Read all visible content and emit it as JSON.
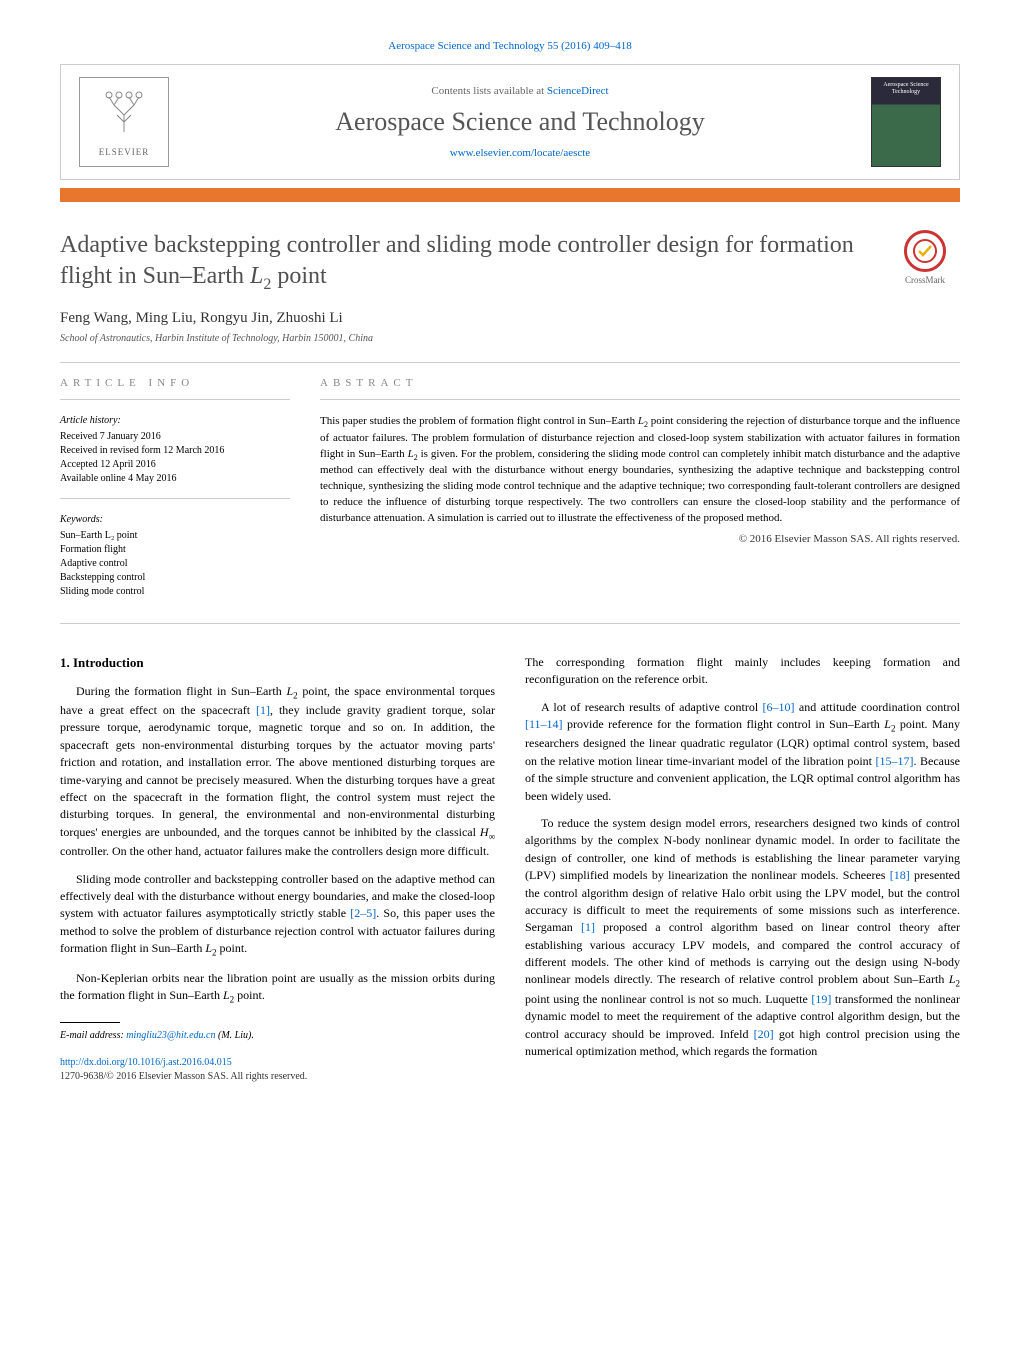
{
  "journal_ref": "Aerospace Science and Technology 55 (2016) 409–418",
  "header": {
    "contents_prefix": "Contents lists available at ",
    "contents_link": "ScienceDirect",
    "journal_name": "Aerospace Science and Technology",
    "journal_url": "www.elsevier.com/locate/aescte",
    "publisher": "ELSEVIER",
    "cover_text": "Aerospace Science Technology"
  },
  "title_html": "Adaptive backstepping controller and sliding mode controller design for formation flight in Sun–Earth <em>L</em><sub>2</sub> point",
  "crossmark": "CrossMark",
  "authors": "Feng Wang, Ming Liu, Rongyu Jin, Zhuoshi Li",
  "affiliation": "School of Astronautics, Harbin Institute of Technology, Harbin 150001, China",
  "article_info": {
    "heading": "article info",
    "history_head": "Article history:",
    "history": [
      "Received 7 January 2016",
      "Received in revised form 12 March 2016",
      "Accepted 12 April 2016",
      "Available online 4 May 2016"
    ],
    "keywords_head": "Keywords:",
    "keywords": [
      "Sun–Earth L₂ point",
      "Formation flight",
      "Adaptive control",
      "Backstepping control",
      "Sliding mode control"
    ]
  },
  "abstract": {
    "heading": "abstract",
    "text_html": "This paper studies the problem of formation flight control in Sun–Earth <em>L</em><sub>2</sub> point considering the rejection of disturbance torque and the influence of actuator failures. The problem formulation of disturbance rejection and closed-loop system stabilization with actuator failures in formation flight in Sun–Earth <em>L</em><sub>2</sub> is given. For the problem, considering the sliding mode control can completely inhibit match disturbance and the adaptive method can effectively deal with the disturbance without energy boundaries, synthesizing the adaptive technique and backstepping control technique, synthesizing the sliding mode control technique and the adaptive technique; two corresponding fault-tolerant controllers are designed to reduce the influence of disturbing torque respectively. The two controllers can ensure the closed-loop stability and the performance of disturbance attenuation. A simulation is carried out to illustrate the effectiveness of the proposed method.",
    "copyright": "© 2016 Elsevier Masson SAS. All rights reserved."
  },
  "body": {
    "section_num": "1.",
    "section_title": "Introduction",
    "left_paragraphs_html": [
      "During the formation flight in Sun–Earth <em>L</em><sub>2</sub> point, the space environmental torques have a great effect on the spacecraft <span class='ref'>[1]</span>, they include gravity gradient torque, solar pressure torque, aerodynamic torque, magnetic torque and so on. In addition, the spacecraft gets non-environmental disturbing torques by the actuator moving parts' friction and rotation, and installation error. The above mentioned disturbing torques are time-varying and cannot be precisely measured. When the disturbing torques have a great effect on the spacecraft in the formation flight, the control system must reject the disturbing torques. In general, the environmental and non-environmental disturbing torques' energies are unbounded, and the torques cannot be inhibited by the classical <em>H</em><sub>∞</sub> controller. On the other hand, actuator failures make the controllers design more difficult.",
      "Sliding mode controller and backstepping controller based on the adaptive method can effectively deal with the disturbance without energy boundaries, and make the closed-loop system with actuator failures asymptotically strictly stable <span class='ref'>[2–5]</span>. So, this paper uses the method to solve the problem of disturbance rejection control with actuator failures during formation flight in Sun–Earth <em>L</em><sub>2</sub> point.",
      "Non-Keplerian orbits near the libration point are usually as the mission orbits during the formation flight in Sun–Earth <em>L</em><sub>2</sub> point."
    ],
    "right_paragraphs_html": [
      "The corresponding formation flight mainly includes keeping formation and reconfiguration on the reference orbit.",
      "A lot of research results of adaptive control <span class='ref'>[6–10]</span> and attitude coordination control <span class='ref'>[11–14]</span> provide reference for the formation flight control in Sun–Earth <em>L</em><sub>2</sub> point. Many researchers designed the linear quadratic regulator (LQR) optimal control system, based on the relative motion linear time-invariant model of the libration point <span class='ref'>[15–17]</span>. Because of the simple structure and convenient application, the LQR optimal control algorithm has been widely used.",
      "To reduce the system design model errors, researchers designed two kinds of control algorithms by the complex N-body nonlinear dynamic model. In order to facilitate the design of controller, one kind of methods is establishing the linear parameter varying (LPV) simplified models by linearization the nonlinear models. Scheeres <span class='ref'>[18]</span> presented the control algorithm design of relative Halo orbit using the LPV model, but the control accuracy is difficult to meet the requirements of some missions such as interference. Sergaman <span class='ref'>[1]</span> proposed a control algorithm based on linear control theory after establishing various accuracy LPV models, and compared the control accuracy of different models. The other kind of methods is carrying out the design using N-body nonlinear models directly. The research of relative control problem about Sun–Earth <em>L</em><sub>2</sub> point using the nonlinear control is not so much. Luquette <span class='ref'>[19]</span> transformed the nonlinear dynamic model to meet the requirement of the adaptive control algorithm design, but the control accuracy should be improved. Infeld <span class='ref'>[20]</span> got high control precision using the numerical optimization method, which regards the formation"
    ]
  },
  "footer": {
    "email_label": "E-mail address:",
    "email": "mingliu23@hit.edu.cn",
    "email_who": "(M. Liu).",
    "doi": "http://dx.doi.org/10.1016/j.ast.2016.04.015",
    "issn": "1270-9638/© 2016 Elsevier Masson SAS. All rights reserved."
  },
  "colors": {
    "orange": "#e8762d",
    "link": "#0066cc",
    "title_gray": "#505050",
    "heading_gray": "#888888"
  }
}
